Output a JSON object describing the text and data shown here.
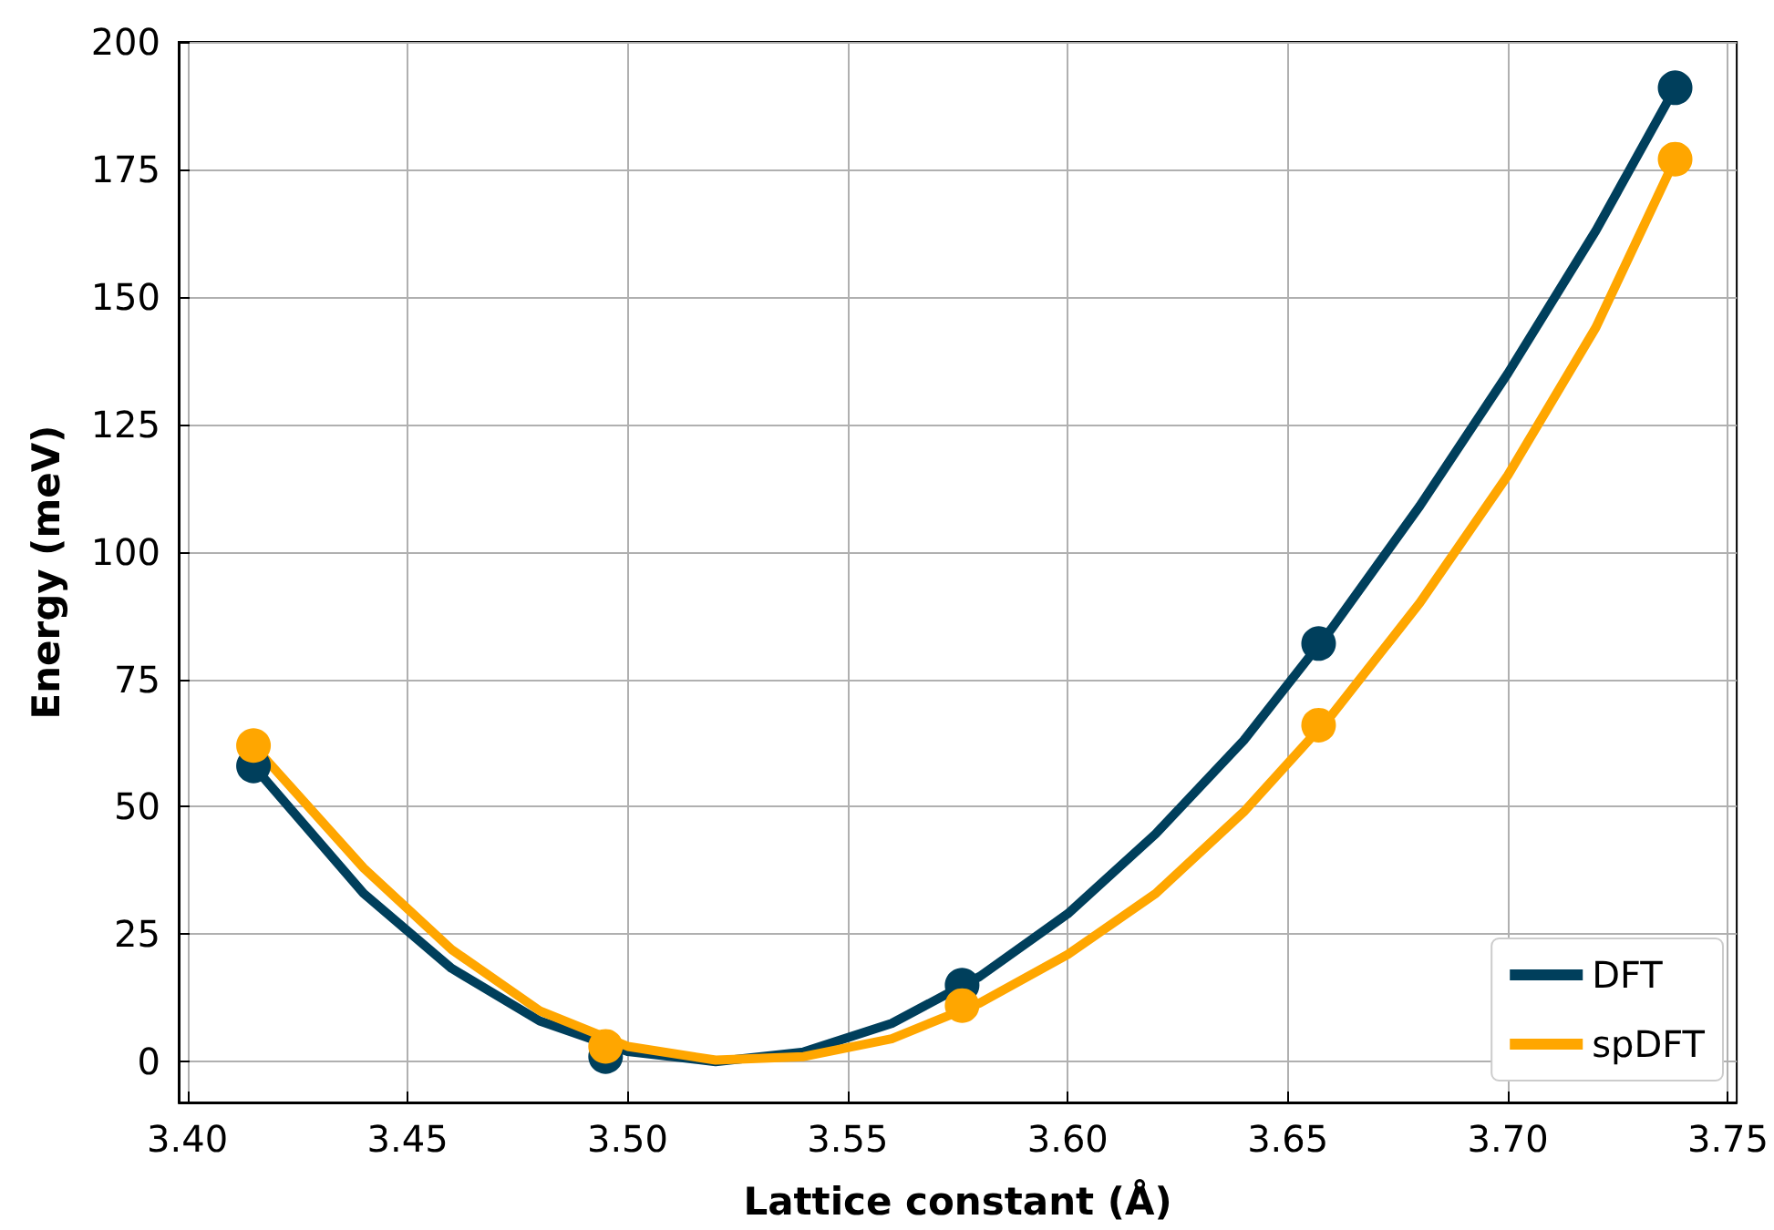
{
  "chart_data": {
    "type": "line",
    "xlabel": "Lattice constant (Å)",
    "ylabel": "Energy (meV)",
    "xlim": [
      3.398,
      3.752
    ],
    "ylim": [
      -8,
      200
    ],
    "xticks": [
      {
        "value": 3.4,
        "label": "3.40"
      },
      {
        "value": 3.45,
        "label": "3.45"
      },
      {
        "value": 3.5,
        "label": "3.50"
      },
      {
        "value": 3.55,
        "label": "3.55"
      },
      {
        "value": 3.6,
        "label": "3.60"
      },
      {
        "value": 3.65,
        "label": "3.65"
      },
      {
        "value": 3.7,
        "label": "3.70"
      },
      {
        "value": 3.75,
        "label": "3.75"
      }
    ],
    "yticks": [
      0,
      25,
      50,
      75,
      100,
      125,
      150,
      175,
      200
    ],
    "grid": true,
    "legend": "bottom right",
    "series": [
      {
        "name": "DFT",
        "color": "#003f5c",
        "marker": "none",
        "line_style": "solid",
        "x": [
          3.415,
          3.44,
          3.46,
          3.48,
          3.5,
          3.52,
          3.54,
          3.56,
          3.58,
          3.6,
          3.62,
          3.64,
          3.66,
          3.68,
          3.7,
          3.72,
          3.738
        ],
        "values": [
          58,
          33,
          18.3,
          8,
          2,
          0,
          1.9,
          7.5,
          16.7,
          29,
          44.7,
          63,
          85,
          109,
          135,
          163,
          191
        ]
      },
      {
        "name": "spDFT",
        "color": "#ffa600",
        "marker": "none",
        "line_style": "solid",
        "x": [
          3.415,
          3.44,
          3.46,
          3.48,
          3.5,
          3.52,
          3.54,
          3.56,
          3.58,
          3.6,
          3.62,
          3.64,
          3.66,
          3.68,
          3.7,
          3.72,
          3.738
        ],
        "values": [
          62,
          38,
          22,
          10,
          3,
          0.3,
          1,
          4.5,
          11.5,
          21,
          33,
          49,
          68,
          90,
          115,
          144,
          177
        ]
      },
      {
        "type": "scatter",
        "color": "#003f5c",
        "marker": "circle",
        "x": [
          3.415,
          3.495,
          3.576,
          3.657,
          3.738
        ],
        "values": [
          58,
          1,
          15,
          82,
          191
        ]
      },
      {
        "type": "scatter",
        "color": "#ffa600",
        "marker": "circle",
        "x": [
          3.415,
          3.495,
          3.576,
          3.657,
          3.738
        ],
        "values": [
          62,
          3,
          11,
          66,
          177
        ]
      }
    ]
  }
}
